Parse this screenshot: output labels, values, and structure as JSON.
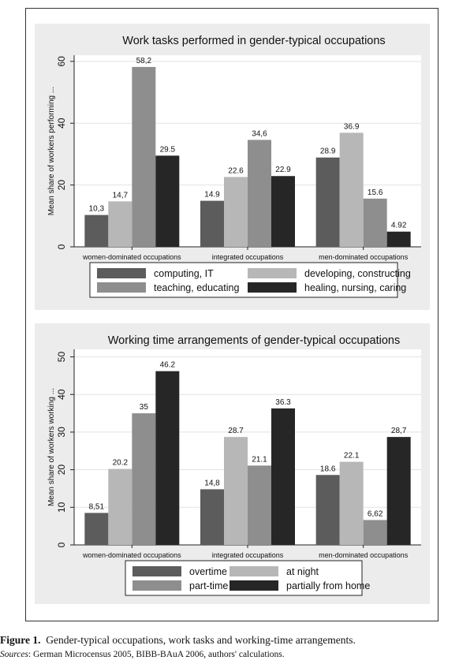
{
  "chart_data": [
    {
      "type": "bar",
      "title": "Work tasks performed in gender-typical occupations",
      "ylabel": "Mean share of workers performing ...",
      "ylim": [
        0,
        62
      ],
      "yticks": [
        0,
        20,
        40,
        60
      ],
      "grid": true,
      "legend_position": "bottom",
      "categories": [
        "women-dominated occupations",
        "integrated occupations",
        "men-dominated occupations"
      ],
      "series": [
        {
          "name": "computing, IT",
          "color": "#5c5c5c",
          "values": [
            10.3,
            14.9,
            28.9
          ],
          "labels": [
            "10,3",
            "14.9",
            "28.9"
          ]
        },
        {
          "name": "developing, constructing",
          "color": "#b7b7b7",
          "values": [
            14.7,
            22.6,
            36.9
          ],
          "labels": [
            "14,7",
            "22.6",
            "36.9"
          ]
        },
        {
          "name": "teaching, educating",
          "color": "#8e8e8e",
          "values": [
            58.2,
            34.6,
            15.6
          ],
          "labels": [
            "58,2",
            "34,6",
            "15.6"
          ]
        },
        {
          "name": "healing, nursing, caring",
          "color": "#262626",
          "values": [
            29.5,
            22.9,
            4.92
          ],
          "labels": [
            "29.5",
            "22.9",
            "4.92"
          ]
        }
      ]
    },
    {
      "type": "bar",
      "title": "Working time arrangements of gender-typical occupations",
      "ylabel": "Mean share of workers working ...",
      "ylim": [
        0,
        52
      ],
      "yticks": [
        0,
        10,
        20,
        30,
        40,
        50
      ],
      "grid": true,
      "legend_position": "bottom",
      "categories": [
        "women-dominated occupations",
        "integrated occupations",
        "men-dominated occupations"
      ],
      "series": [
        {
          "name": "overtime",
          "color": "#5c5c5c",
          "values": [
            8.51,
            14.8,
            18.6
          ],
          "labels": [
            "8,51",
            "14,8",
            "18.6"
          ]
        },
        {
          "name": "at night",
          "color": "#b7b7b7",
          "values": [
            20.2,
            28.7,
            22.1
          ],
          "labels": [
            "20.2",
            "28.7",
            "22.1"
          ]
        },
        {
          "name": "part-time",
          "color": "#8e8e8e",
          "values": [
            35,
            21.1,
            6.62
          ],
          "labels": [
            "35",
            "21.1",
            "6,62"
          ]
        },
        {
          "name": "partially from home",
          "color": "#262626",
          "values": [
            46.2,
            36.3,
            28.7
          ],
          "labels": [
            "46.2",
            "36.3",
            "28,7"
          ]
        }
      ]
    }
  ],
  "caption": {
    "figure_label": "Figure 1.",
    "figure_text": "Gender-typical occupations, work tasks and working-time arrangements.",
    "sources_label": "Sources",
    "sources_text": ": German Microcensus 2005, BIBB-BAuA 2006, authors' calculations."
  }
}
